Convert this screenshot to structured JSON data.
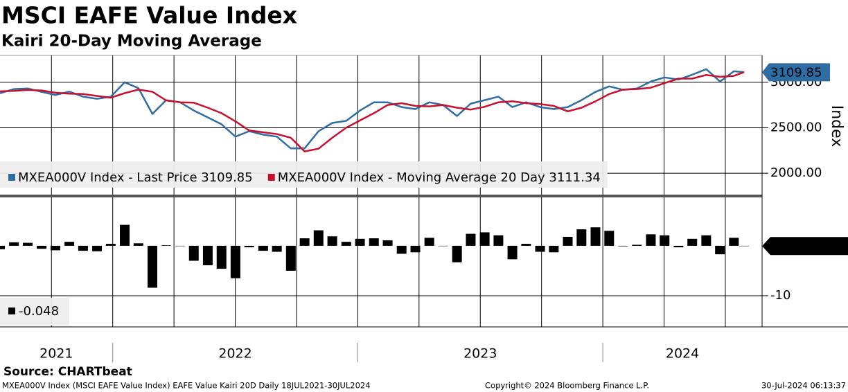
{
  "title": "MSCI EAFE Value Index",
  "subtitle": "Kairi 20-Day Moving Average",
  "source": "Source: CHARTbeat",
  "footer_left": "MXEA000V Index (MSCI EAFE Value Index) EAFE Value Kairi 20D  Daily 18JUL2021-30JUL2024",
  "copyright": "Copyright© 2024 Bloomberg Finance L.P.",
  "timestamp": "30-Jul-2024 06:13:37",
  "chart_data": [
    {
      "type": "line",
      "y_label": "Index",
      "grid": true,
      "x": [
        2021.54,
        2021.597,
        2021.653,
        2021.71,
        2021.766,
        2021.823,
        2021.879,
        2021.936,
        2021.992,
        2022.049,
        2022.105,
        2022.162,
        2022.218,
        2022.275,
        2022.331,
        2022.388,
        2022.444,
        2022.501,
        2022.557,
        2022.614,
        2022.67,
        2022.727,
        2022.783,
        2022.84,
        2022.896,
        2022.953,
        2023.009,
        2023.066,
        2023.122,
        2023.179,
        2023.235,
        2023.292,
        2023.348,
        2023.405,
        2023.461,
        2023.518,
        2023.574,
        2023.631,
        2023.687,
        2023.744,
        2023.8,
        2023.857,
        2023.913,
        2023.97,
        2024.026,
        2024.083,
        2024.139,
        2024.196,
        2024.252,
        2024.309,
        2024.365,
        2024.422,
        2024.478,
        2024.535,
        2024.577
      ],
      "series": [
        {
          "name": "MXEA000V Index - Last Price 3109.85",
          "color": "#2e6da4",
          "values": [
            2879,
            2925,
            2932,
            2894,
            2860,
            2897,
            2841,
            2818,
            2841,
            3000,
            2935,
            2652,
            2803,
            2780,
            2689,
            2614,
            2538,
            2402,
            2462,
            2424,
            2402,
            2273,
            2273,
            2462,
            2553,
            2576,
            2689,
            2780,
            2780,
            2727,
            2705,
            2780,
            2750,
            2629,
            2765,
            2803,
            2841,
            2727,
            2780,
            2727,
            2705,
            2727,
            2803,
            2894,
            2955,
            2917,
            2932,
            3008,
            3053,
            3030,
            3083,
            3144,
            3008,
            3121,
            3109.85
          ]
        },
        {
          "name": "MXEA000V Index - Moving Average 20 Day 3111.34",
          "color": "#c8102e",
          "values": [
            2900,
            2905,
            2915,
            2910,
            2885,
            2875,
            2870,
            2850,
            2830,
            2880,
            2920,
            2895,
            2800,
            2780,
            2775,
            2720,
            2660,
            2570,
            2470,
            2450,
            2430,
            2390,
            2240,
            2270,
            2390,
            2500,
            2580,
            2660,
            2750,
            2770,
            2740,
            2735,
            2750,
            2720,
            2700,
            2730,
            2780,
            2790,
            2770,
            2760,
            2740,
            2680,
            2720,
            2790,
            2870,
            2920,
            2925,
            2940,
            2990,
            3040,
            3040,
            3080,
            3060,
            3070,
            3111.34
          ]
        }
      ],
      "xlim": [
        2021.54,
        2024.65
      ],
      "xgrid": [
        2021.75,
        2022,
        2022.25,
        2022.5,
        2022.75,
        2023,
        2023.25,
        2023.5,
        2023.75,
        2024,
        2024.25,
        2024.5
      ],
      "ylim": [
        1765,
        3295
      ],
      "yticks": [
        {
          "value": 2000,
          "label": "2000.00"
        },
        {
          "value": 2500,
          "label": "2500.00"
        },
        {
          "value": 3000,
          "label": "3000.00"
        }
      ]
    },
    {
      "type": "bar",
      "color": "#000000",
      "grid": true,
      "x": [
        2021.54,
        2021.597,
        2021.653,
        2021.71,
        2021.766,
        2021.823,
        2021.879,
        2021.936,
        2021.992,
        2022.049,
        2022.105,
        2022.162,
        2022.218,
        2022.275,
        2022.331,
        2022.388,
        2022.444,
        2022.501,
        2022.557,
        2022.614,
        2022.67,
        2022.727,
        2022.783,
        2022.84,
        2022.896,
        2022.953,
        2023.009,
        2023.066,
        2023.122,
        2023.179,
        2023.235,
        2023.292,
        2023.348,
        2023.405,
        2023.461,
        2023.518,
        2023.574,
        2023.631,
        2023.687,
        2023.744,
        2023.8,
        2023.857,
        2023.913,
        2023.97,
        2024.026,
        2024.083,
        2024.139,
        2024.196,
        2024.252,
        2024.309,
        2024.365,
        2024.422,
        2024.478,
        2024.535,
        2024.577
      ],
      "values": [
        -0.7,
        0.7,
        0.6,
        -0.6,
        -0.9,
        0.8,
        -1.0,
        -1.1,
        0.4,
        4.2,
        0.5,
        -8.4,
        0.1,
        0.0,
        -3.0,
        -3.9,
        -4.6,
        -6.5,
        -0.3,
        -1.0,
        -1.2,
        -5.0,
        1.5,
        3.1,
        1.9,
        0.8,
        1.4,
        1.5,
        1.1,
        -1.6,
        -1.3,
        1.6,
        0.0,
        -3.3,
        2.4,
        2.7,
        2.1,
        -2.7,
        0.4,
        -1.2,
        -1.3,
        1.8,
        3.3,
        3.7,
        3.0,
        -0.1,
        0.2,
        2.3,
        2.1,
        -0.3,
        1.4,
        2.1,
        -1.7,
        1.6,
        -0.048
      ],
      "xlim": [
        2021.54,
        2024.65
      ],
      "xgrid": [
        2021.75,
        2022,
        2022.25,
        2022.5,
        2022.75,
        2023,
        2023.25,
        2023.5,
        2023.75,
        2024,
        2024.25,
        2024.5
      ],
      "xticks": [
        {
          "value": 2021,
          "label": "2021"
        },
        {
          "value": 2022,
          "label": "2022"
        },
        {
          "value": 2023,
          "label": "2023"
        },
        {
          "value": 2024,
          "label": "2024"
        }
      ],
      "ylim": [
        -16.25,
        9.7
      ],
      "yticks": [
        -10
      ]
    }
  ]
}
